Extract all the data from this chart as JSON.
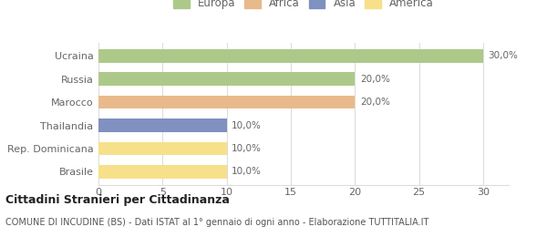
{
  "categories": [
    "Brasile",
    "Rep. Dominicana",
    "Thailandia",
    "Marocco",
    "Russia",
    "Ucraina"
  ],
  "values": [
    10,
    10,
    10,
    20,
    20,
    30
  ],
  "bar_colors": [
    "#f7e08a",
    "#f7e08a",
    "#8090c0",
    "#e8b98a",
    "#adc98a",
    "#adc98a"
  ],
  "labels": [
    "10,0%",
    "10,0%",
    "10,0%",
    "20,0%",
    "20,0%",
    "30,0%"
  ],
  "legend_entries": [
    "Europa",
    "Africa",
    "Asia",
    "America"
  ],
  "legend_colors": [
    "#adc98a",
    "#e8b98a",
    "#8090c0",
    "#f7e08a"
  ],
  "title": "Cittadini Stranieri per Cittadinanza",
  "subtitle": "COMUNE DI INCUDINE (BS) - Dati ISTAT al 1° gennaio di ogni anno - Elaborazione TUTTITALIA.IT",
  "xlim_max": 32,
  "xticks": [
    0,
    5,
    10,
    15,
    20,
    25,
    30
  ],
  "background_color": "#ffffff",
  "bar_height": 0.58,
  "grid_color": "#dddddd",
  "label_color": "#666666",
  "tick_color": "#666666"
}
